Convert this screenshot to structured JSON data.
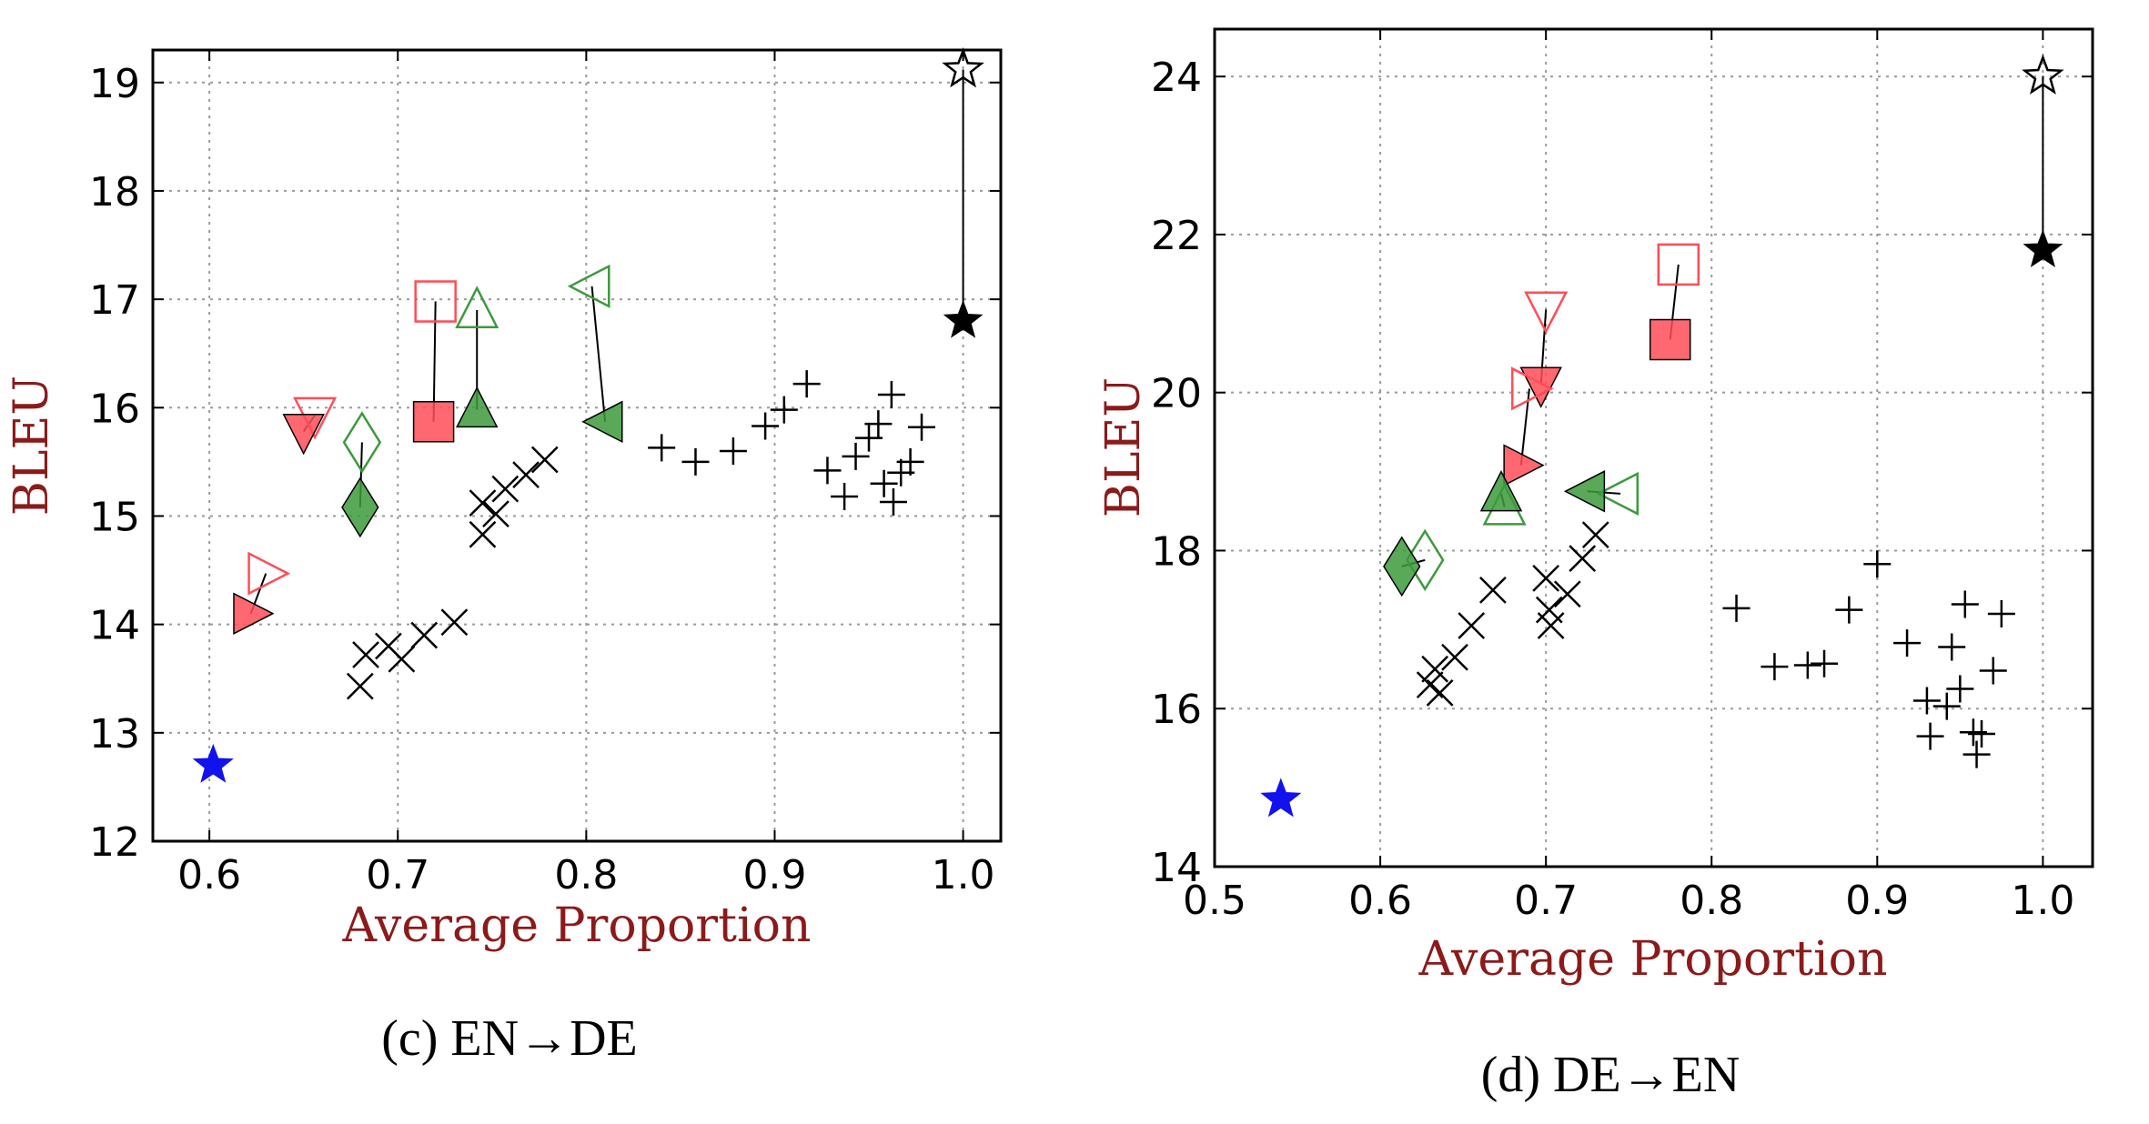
{
  "colors": {
    "label": "#8b1a1a",
    "red": "#ff4d57",
    "green": "#3c9a3c",
    "blue": "#1212ee",
    "black": "#000000"
  },
  "chart_data": [
    {
      "type": "scatter",
      "caption": "(c)  EN→DE",
      "xlabel": "Average Proportion",
      "ylabel": "BLEU",
      "xlim": [
        0.57,
        1.02
      ],
      "ylim": [
        12.0,
        19.3
      ],
      "xticks": [
        "0.6",
        "0.7",
        "0.8",
        "0.9",
        "1.0"
      ],
      "xtick_values": [
        0.6,
        0.7,
        0.8,
        0.9,
        1.0
      ],
      "yticks": [
        "12",
        "13",
        "14",
        "15",
        "16",
        "17",
        "18",
        "19"
      ],
      "ytick_values": [
        12,
        13,
        14,
        15,
        16,
        17,
        18,
        19
      ],
      "grid": true,
      "points": [
        {
          "m": "star",
          "c": "blue",
          "f": true,
          "x": 0.602,
          "y": 12.7
        },
        {
          "m": "star",
          "c": "black",
          "f": false,
          "x": 1.0,
          "y": 19.12
        },
        {
          "m": "star",
          "c": "black",
          "f": true,
          "x": 1.0,
          "y": 16.8
        },
        {
          "m": "square",
          "c": "red",
          "f": false,
          "x": 0.72,
          "y": 16.98
        },
        {
          "m": "square",
          "c": "red",
          "f": true,
          "x": 0.719,
          "y": 15.87
        },
        {
          "m": "tri_down",
          "c": "red",
          "f": false,
          "x": 0.656,
          "y": 15.93
        },
        {
          "m": "tri_down",
          "c": "red",
          "f": true,
          "x": 0.65,
          "y": 15.78
        },
        {
          "m": "tri_right",
          "c": "red",
          "f": false,
          "x": 0.63,
          "y": 14.47
        },
        {
          "m": "tri_right",
          "c": "red",
          "f": true,
          "x": 0.622,
          "y": 14.1
        },
        {
          "m": "tri_up",
          "c": "green",
          "f": false,
          "x": 0.742,
          "y": 16.9
        },
        {
          "m": "tri_up",
          "c": "green",
          "f": true,
          "x": 0.742,
          "y": 15.98
        },
        {
          "m": "tri_left",
          "c": "green",
          "f": false,
          "x": 0.803,
          "y": 17.12
        },
        {
          "m": "tri_left",
          "c": "green",
          "f": true,
          "x": 0.81,
          "y": 15.87
        },
        {
          "m": "diamond",
          "c": "green",
          "f": false,
          "x": 0.681,
          "y": 15.68
        },
        {
          "m": "diamond",
          "c": "green",
          "f": true,
          "x": 0.68,
          "y": 15.08
        },
        {
          "m": "x",
          "c": "black",
          "f": false,
          "x": 0.68,
          "y": 13.43
        },
        {
          "m": "x",
          "c": "black",
          "f": false,
          "x": 0.683,
          "y": 13.72
        },
        {
          "m": "x",
          "c": "black",
          "f": false,
          "x": 0.695,
          "y": 13.8
        },
        {
          "m": "x",
          "c": "black",
          "f": false,
          "x": 0.702,
          "y": 13.68
        },
        {
          "m": "x",
          "c": "black",
          "f": false,
          "x": 0.714,
          "y": 13.9
        },
        {
          "m": "x",
          "c": "black",
          "f": false,
          "x": 0.73,
          "y": 14.02
        },
        {
          "m": "x",
          "c": "black",
          "f": false,
          "x": 0.745,
          "y": 14.83
        },
        {
          "m": "x",
          "c": "black",
          "f": false,
          "x": 0.745,
          "y": 15.12
        },
        {
          "m": "x",
          "c": "black",
          "f": false,
          "x": 0.752,
          "y": 15.02
        },
        {
          "m": "x",
          "c": "black",
          "f": false,
          "x": 0.757,
          "y": 15.25
        },
        {
          "m": "x",
          "c": "black",
          "f": false,
          "x": 0.768,
          "y": 15.38
        },
        {
          "m": "x",
          "c": "black",
          "f": false,
          "x": 0.778,
          "y": 15.52
        },
        {
          "m": "plus",
          "c": "black",
          "f": false,
          "x": 0.84,
          "y": 15.63
        },
        {
          "m": "plus",
          "c": "black",
          "f": false,
          "x": 0.858,
          "y": 15.5
        },
        {
          "m": "plus",
          "c": "black",
          "f": false,
          "x": 0.878,
          "y": 15.6
        },
        {
          "m": "plus",
          "c": "black",
          "f": false,
          "x": 0.895,
          "y": 15.83
        },
        {
          "m": "plus",
          "c": "black",
          "f": false,
          "x": 0.905,
          "y": 15.98
        },
        {
          "m": "plus",
          "c": "black",
          "f": false,
          "x": 0.917,
          "y": 16.22
        },
        {
          "m": "plus",
          "c": "black",
          "f": false,
          "x": 0.928,
          "y": 15.42
        },
        {
          "m": "plus",
          "c": "black",
          "f": false,
          "x": 0.937,
          "y": 15.18
        },
        {
          "m": "plus",
          "c": "black",
          "f": false,
          "x": 0.943,
          "y": 15.55
        },
        {
          "m": "plus",
          "c": "black",
          "f": false,
          "x": 0.95,
          "y": 15.72
        },
        {
          "m": "plus",
          "c": "black",
          "f": false,
          "x": 0.955,
          "y": 15.85
        },
        {
          "m": "plus",
          "c": "black",
          "f": false,
          "x": 0.958,
          "y": 15.3
        },
        {
          "m": "plus",
          "c": "black",
          "f": false,
          "x": 0.962,
          "y": 16.12
        },
        {
          "m": "plus",
          "c": "black",
          "f": false,
          "x": 0.963,
          "y": 15.13
        },
        {
          "m": "plus",
          "c": "black",
          "f": false,
          "x": 0.967,
          "y": 15.4
        },
        {
          "m": "plus",
          "c": "black",
          "f": false,
          "x": 0.972,
          "y": 15.5
        },
        {
          "m": "plus",
          "c": "black",
          "f": false,
          "x": 0.978,
          "y": 15.82
        }
      ],
      "lines": [
        [
          [
            1.0,
            19.12
          ],
          [
            1.0,
            16.8
          ]
        ],
        [
          [
            0.72,
            16.98
          ],
          [
            0.719,
            15.87
          ]
        ],
        [
          [
            0.656,
            15.93
          ],
          [
            0.65,
            15.78
          ]
        ],
        [
          [
            0.63,
            14.47
          ],
          [
            0.622,
            14.1
          ]
        ],
        [
          [
            0.742,
            16.9
          ],
          [
            0.742,
            15.98
          ]
        ],
        [
          [
            0.803,
            17.12
          ],
          [
            0.81,
            15.87
          ]
        ],
        [
          [
            0.681,
            15.68
          ],
          [
            0.68,
            15.08
          ]
        ]
      ]
    },
    {
      "type": "scatter",
      "caption": "(d)  DE→EN",
      "xlabel": "Average Proportion",
      "ylabel": "BLEU",
      "xlim": [
        0.5,
        1.03
      ],
      "ylim": [
        14.0,
        24.6
      ],
      "xticks": [
        "0.5",
        "0.6",
        "0.7",
        "0.8",
        "0.9",
        "1.0"
      ],
      "xtick_values": [
        0.5,
        0.6,
        0.7,
        0.8,
        0.9,
        1.0
      ],
      "yticks": [
        "14",
        "16",
        "18",
        "20",
        "22",
        "24"
      ],
      "ytick_values": [
        14,
        16,
        18,
        20,
        22,
        24
      ],
      "grid": true,
      "points": [
        {
          "m": "star",
          "c": "blue",
          "f": true,
          "x": 0.54,
          "y": 14.85
        },
        {
          "m": "star",
          "c": "black",
          "f": false,
          "x": 1.0,
          "y": 24.0
        },
        {
          "m": "star",
          "c": "black",
          "f": true,
          "x": 1.0,
          "y": 21.8
        },
        {
          "m": "square",
          "c": "red",
          "f": false,
          "x": 0.78,
          "y": 21.62
        },
        {
          "m": "square",
          "c": "red",
          "f": true,
          "x": 0.775,
          "y": 20.67
        },
        {
          "m": "tri_down",
          "c": "red",
          "f": false,
          "x": 0.7,
          "y": 21.05
        },
        {
          "m": "tri_down",
          "c": "red",
          "f": true,
          "x": 0.697,
          "y": 20.1
        },
        {
          "m": "tri_right",
          "c": "red",
          "f": false,
          "x": 0.69,
          "y": 20.05
        },
        {
          "m": "tri_right",
          "c": "red",
          "f": true,
          "x": 0.685,
          "y": 19.08
        },
        {
          "m": "tri_up",
          "c": "green",
          "f": false,
          "x": 0.675,
          "y": 18.55
        },
        {
          "m": "tri_up",
          "c": "green",
          "f": true,
          "x": 0.673,
          "y": 18.72
        },
        {
          "m": "tri_left",
          "c": "green",
          "f": false,
          "x": 0.745,
          "y": 18.72
        },
        {
          "m": "tri_left",
          "c": "green",
          "f": true,
          "x": 0.725,
          "y": 18.75
        },
        {
          "m": "diamond",
          "c": "green",
          "f": false,
          "x": 0.627,
          "y": 17.88
        },
        {
          "m": "diamond",
          "c": "green",
          "f": true,
          "x": 0.613,
          "y": 17.8
        },
        {
          "m": "x",
          "c": "black",
          "f": false,
          "x": 0.63,
          "y": 16.3
        },
        {
          "m": "x",
          "c": "black",
          "f": false,
          "x": 0.633,
          "y": 16.5
        },
        {
          "m": "x",
          "c": "black",
          "f": false,
          "x": 0.636,
          "y": 16.2
        },
        {
          "m": "x",
          "c": "black",
          "f": false,
          "x": 0.645,
          "y": 16.65
        },
        {
          "m": "x",
          "c": "black",
          "f": false,
          "x": 0.655,
          "y": 17.05
        },
        {
          "m": "x",
          "c": "black",
          "f": false,
          "x": 0.668,
          "y": 17.5
        },
        {
          "m": "x",
          "c": "black",
          "f": false,
          "x": 0.7,
          "y": 17.65
        },
        {
          "m": "x",
          "c": "black",
          "f": false,
          "x": 0.702,
          "y": 17.25
        },
        {
          "m": "x",
          "c": "black",
          "f": false,
          "x": 0.703,
          "y": 17.05
        },
        {
          "m": "x",
          "c": "black",
          "f": false,
          "x": 0.713,
          "y": 17.45
        },
        {
          "m": "x",
          "c": "black",
          "f": false,
          "x": 0.722,
          "y": 17.9
        },
        {
          "m": "x",
          "c": "black",
          "f": false,
          "x": 0.73,
          "y": 18.2
        },
        {
          "m": "plus",
          "c": "black",
          "f": false,
          "x": 0.815,
          "y": 17.27
        },
        {
          "m": "plus",
          "c": "black",
          "f": false,
          "x": 0.838,
          "y": 16.53
        },
        {
          "m": "plus",
          "c": "black",
          "f": false,
          "x": 0.858,
          "y": 16.55
        },
        {
          "m": "plus",
          "c": "black",
          "f": false,
          "x": 0.868,
          "y": 16.57
        },
        {
          "m": "plus",
          "c": "black",
          "f": false,
          "x": 0.883,
          "y": 17.25
        },
        {
          "m": "plus",
          "c": "black",
          "f": false,
          "x": 0.9,
          "y": 17.83
        },
        {
          "m": "plus",
          "c": "black",
          "f": false,
          "x": 0.918,
          "y": 16.83
        },
        {
          "m": "plus",
          "c": "black",
          "f": false,
          "x": 0.93,
          "y": 16.1
        },
        {
          "m": "plus",
          "c": "black",
          "f": false,
          "x": 0.932,
          "y": 15.65
        },
        {
          "m": "plus",
          "c": "black",
          "f": false,
          "x": 0.942,
          "y": 16.03
        },
        {
          "m": "plus",
          "c": "black",
          "f": false,
          "x": 0.945,
          "y": 16.78
        },
        {
          "m": "plus",
          "c": "black",
          "f": false,
          "x": 0.95,
          "y": 16.25
        },
        {
          "m": "plus",
          "c": "black",
          "f": false,
          "x": 0.953,
          "y": 17.32
        },
        {
          "m": "plus",
          "c": "black",
          "f": false,
          "x": 0.958,
          "y": 15.7
        },
        {
          "m": "plus",
          "c": "black",
          "f": false,
          "x": 0.96,
          "y": 15.42
        },
        {
          "m": "plus",
          "c": "black",
          "f": false,
          "x": 0.963,
          "y": 15.68
        },
        {
          "m": "plus",
          "c": "black",
          "f": false,
          "x": 0.97,
          "y": 16.48
        },
        {
          "m": "plus",
          "c": "black",
          "f": false,
          "x": 0.975,
          "y": 17.2
        }
      ],
      "lines": [
        [
          [
            1.0,
            24.0
          ],
          [
            1.0,
            21.8
          ]
        ],
        [
          [
            0.78,
            21.62
          ],
          [
            0.775,
            20.67
          ]
        ],
        [
          [
            0.7,
            21.05
          ],
          [
            0.697,
            20.1
          ]
        ],
        [
          [
            0.69,
            20.05
          ],
          [
            0.685,
            19.08
          ]
        ],
        [
          [
            0.675,
            18.55
          ],
          [
            0.673,
            18.72
          ]
        ],
        [
          [
            0.745,
            18.72
          ],
          [
            0.725,
            18.75
          ]
        ],
        [
          [
            0.627,
            17.88
          ],
          [
            0.613,
            17.8
          ]
        ]
      ]
    }
  ]
}
